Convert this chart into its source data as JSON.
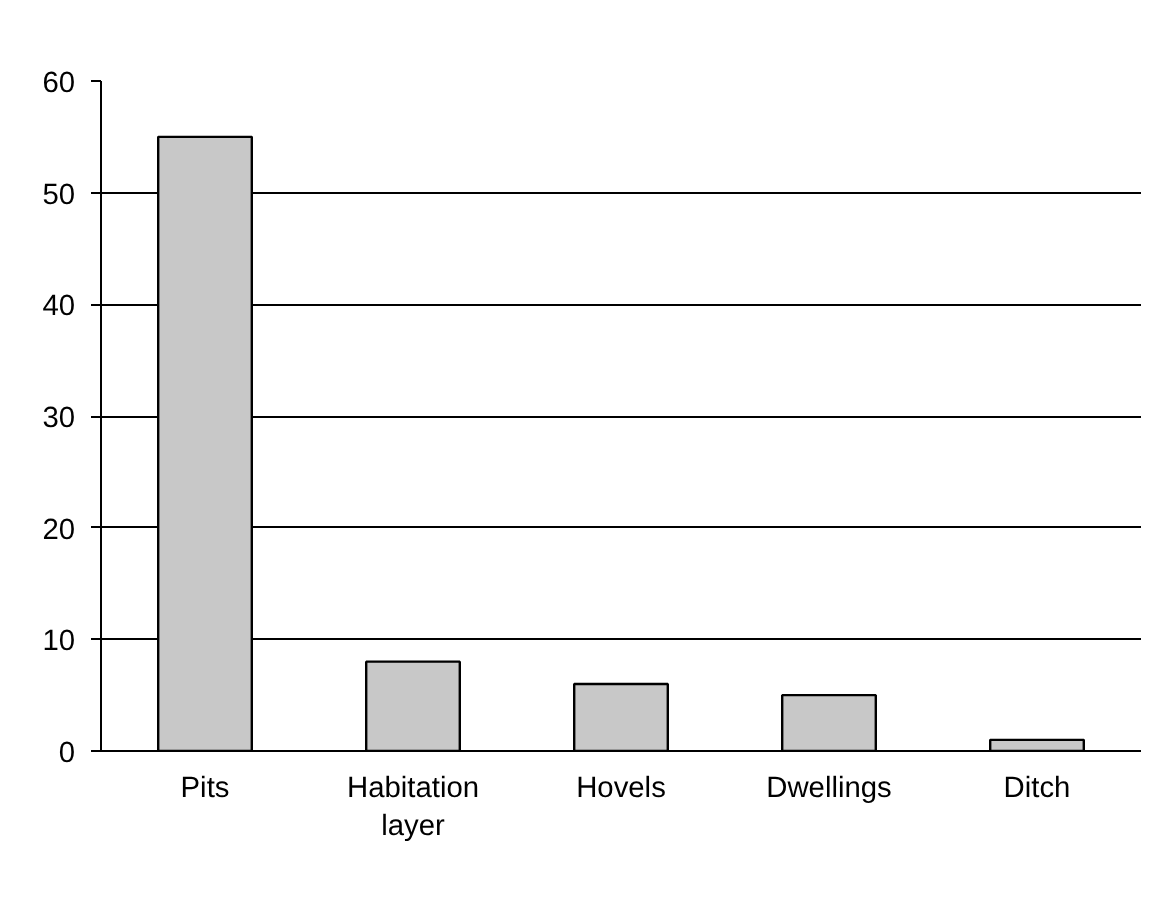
{
  "chart_data": {
    "type": "bar",
    "categories": [
      "Pits",
      "Habitation layer",
      "Hovels",
      "Dwellings",
      "Ditch"
    ],
    "values": [
      55,
      8,
      6,
      5,
      1
    ],
    "color": "#c8c8c8",
    "ylim": [
      0,
      60
    ],
    "yticks": [
      0,
      10,
      20,
      30,
      40,
      50,
      60
    ],
    "grid": "y"
  }
}
